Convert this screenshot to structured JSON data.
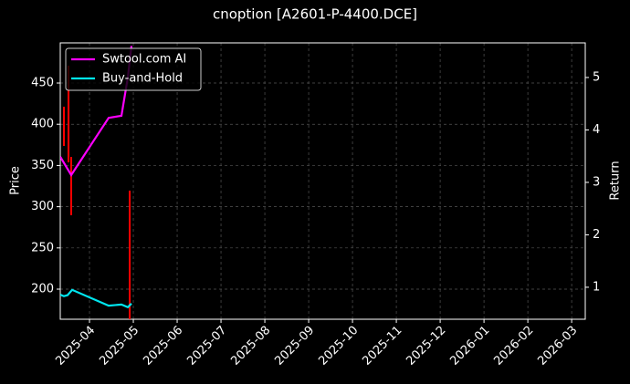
{
  "chart_data": {
    "type": "line",
    "title": "cnoption [A2601-P-4400.DCE]",
    "ylabel": "Price",
    "y2label": "Return",
    "xlim": [
      -0.667,
      11.31
    ],
    "xticks": [
      {
        "value": 0,
        "label": "2025-04"
      },
      {
        "value": 1,
        "label": "2025-05"
      },
      {
        "value": 2,
        "label": "2025-06"
      },
      {
        "value": 3,
        "label": "2025-07"
      },
      {
        "value": 4,
        "label": "2025-08"
      },
      {
        "value": 5,
        "label": "2025-09"
      },
      {
        "value": 6,
        "label": "2025-10"
      },
      {
        "value": 7,
        "label": "2025-11"
      },
      {
        "value": 8,
        "label": "2025-12"
      },
      {
        "value": 9,
        "label": "2026-01"
      },
      {
        "value": 10,
        "label": "2026-02"
      },
      {
        "value": 11,
        "label": "2026-03"
      }
    ],
    "ylim": [
      163.5,
      498.7
    ],
    "yticks": [
      200,
      250,
      300,
      350,
      400,
      450
    ],
    "y2lim": [
      0.39,
      5.66
    ],
    "y2ticks": [
      1,
      2,
      3,
      4,
      5
    ],
    "grid": true,
    "legend": "upper left",
    "price_bars": {
      "color": "#ff0000",
      "x": [
        -0.583,
        -0.479,
        -0.417,
        0.917
      ],
      "low": [
        373.7,
        353.8,
        289.6,
        163.5
      ],
      "high": [
        421.3,
        471,
        360.4,
        319.5
      ]
    },
    "series": [
      {
        "name": "Swtool.com AI",
        "color": "#ff00ff",
        "axis": "y2",
        "x": [
          -0.667,
          -0.417,
          0.438,
          0.729,
          0.875,
          0.958
        ],
        "values": [
          3.49,
          3.14,
          4.23,
          4.27,
          5.0,
          5.6
        ]
      },
      {
        "name": "Buy-and-Hold",
        "color": "#00e5ee",
        "axis": "y2",
        "x": [
          -0.667,
          -0.583,
          -0.5,
          -0.396,
          0.438,
          0.729,
          0.875,
          0.958
        ],
        "values": [
          0.86,
          0.83,
          0.85,
          0.95,
          0.65,
          0.67,
          0.62,
          0.69
        ]
      }
    ]
  }
}
